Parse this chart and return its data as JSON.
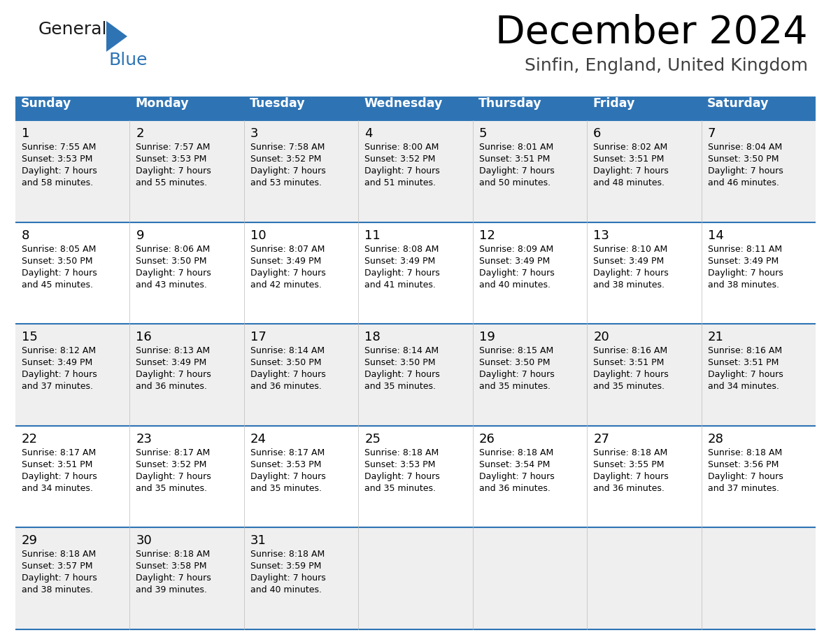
{
  "title": "December 2024",
  "subtitle": "Sinfin, England, United Kingdom",
  "header_color": "#2E74B5",
  "header_text_color": "#FFFFFF",
  "day_headers": [
    "Sunday",
    "Monday",
    "Tuesday",
    "Wednesday",
    "Thursday",
    "Friday",
    "Saturday"
  ],
  "row_bg_even": "#EFEFEF",
  "row_bg_odd": "#FFFFFF",
  "line_color": "#2E74B5",
  "text_color": "#000000",
  "title_color": "#000000",
  "subtitle_color": "#404040",
  "logo_triangle_color": "#2E74B5",
  "logo_general_color": "#1a1a1a",
  "logo_blue_color": "#2E74B5",
  "calendar_data": [
    [
      {
        "day": 1,
        "sunrise": "7:55 AM",
        "sunset": "3:53 PM",
        "daylight_hours": 7,
        "daylight_minutes": 58
      },
      {
        "day": 2,
        "sunrise": "7:57 AM",
        "sunset": "3:53 PM",
        "daylight_hours": 7,
        "daylight_minutes": 55
      },
      {
        "day": 3,
        "sunrise": "7:58 AM",
        "sunset": "3:52 PM",
        "daylight_hours": 7,
        "daylight_minutes": 53
      },
      {
        "day": 4,
        "sunrise": "8:00 AM",
        "sunset": "3:52 PM",
        "daylight_hours": 7,
        "daylight_minutes": 51
      },
      {
        "day": 5,
        "sunrise": "8:01 AM",
        "sunset": "3:51 PM",
        "daylight_hours": 7,
        "daylight_minutes": 50
      },
      {
        "day": 6,
        "sunrise": "8:02 AM",
        "sunset": "3:51 PM",
        "daylight_hours": 7,
        "daylight_minutes": 48
      },
      {
        "day": 7,
        "sunrise": "8:04 AM",
        "sunset": "3:50 PM",
        "daylight_hours": 7,
        "daylight_minutes": 46
      }
    ],
    [
      {
        "day": 8,
        "sunrise": "8:05 AM",
        "sunset": "3:50 PM",
        "daylight_hours": 7,
        "daylight_minutes": 45
      },
      {
        "day": 9,
        "sunrise": "8:06 AM",
        "sunset": "3:50 PM",
        "daylight_hours": 7,
        "daylight_minutes": 43
      },
      {
        "day": 10,
        "sunrise": "8:07 AM",
        "sunset": "3:49 PM",
        "daylight_hours": 7,
        "daylight_minutes": 42
      },
      {
        "day": 11,
        "sunrise": "8:08 AM",
        "sunset": "3:49 PM",
        "daylight_hours": 7,
        "daylight_minutes": 41
      },
      {
        "day": 12,
        "sunrise": "8:09 AM",
        "sunset": "3:49 PM",
        "daylight_hours": 7,
        "daylight_minutes": 40
      },
      {
        "day": 13,
        "sunrise": "8:10 AM",
        "sunset": "3:49 PM",
        "daylight_hours": 7,
        "daylight_minutes": 38
      },
      {
        "day": 14,
        "sunrise": "8:11 AM",
        "sunset": "3:49 PM",
        "daylight_hours": 7,
        "daylight_minutes": 38
      }
    ],
    [
      {
        "day": 15,
        "sunrise": "8:12 AM",
        "sunset": "3:49 PM",
        "daylight_hours": 7,
        "daylight_minutes": 37
      },
      {
        "day": 16,
        "sunrise": "8:13 AM",
        "sunset": "3:49 PM",
        "daylight_hours": 7,
        "daylight_minutes": 36
      },
      {
        "day": 17,
        "sunrise": "8:14 AM",
        "sunset": "3:50 PM",
        "daylight_hours": 7,
        "daylight_minutes": 36
      },
      {
        "day": 18,
        "sunrise": "8:14 AM",
        "sunset": "3:50 PM",
        "daylight_hours": 7,
        "daylight_minutes": 35
      },
      {
        "day": 19,
        "sunrise": "8:15 AM",
        "sunset": "3:50 PM",
        "daylight_hours": 7,
        "daylight_minutes": 35
      },
      {
        "day": 20,
        "sunrise": "8:16 AM",
        "sunset": "3:51 PM",
        "daylight_hours": 7,
        "daylight_minutes": 35
      },
      {
        "day": 21,
        "sunrise": "8:16 AM",
        "sunset": "3:51 PM",
        "daylight_hours": 7,
        "daylight_minutes": 34
      }
    ],
    [
      {
        "day": 22,
        "sunrise": "8:17 AM",
        "sunset": "3:51 PM",
        "daylight_hours": 7,
        "daylight_minutes": 34
      },
      {
        "day": 23,
        "sunrise": "8:17 AM",
        "sunset": "3:52 PM",
        "daylight_hours": 7,
        "daylight_minutes": 35
      },
      {
        "day": 24,
        "sunrise": "8:17 AM",
        "sunset": "3:53 PM",
        "daylight_hours": 7,
        "daylight_minutes": 35
      },
      {
        "day": 25,
        "sunrise": "8:18 AM",
        "sunset": "3:53 PM",
        "daylight_hours": 7,
        "daylight_minutes": 35
      },
      {
        "day": 26,
        "sunrise": "8:18 AM",
        "sunset": "3:54 PM",
        "daylight_hours": 7,
        "daylight_minutes": 36
      },
      {
        "day": 27,
        "sunrise": "8:18 AM",
        "sunset": "3:55 PM",
        "daylight_hours": 7,
        "daylight_minutes": 36
      },
      {
        "day": 28,
        "sunrise": "8:18 AM",
        "sunset": "3:56 PM",
        "daylight_hours": 7,
        "daylight_minutes": 37
      }
    ],
    [
      {
        "day": 29,
        "sunrise": "8:18 AM",
        "sunset": "3:57 PM",
        "daylight_hours": 7,
        "daylight_minutes": 38
      },
      {
        "day": 30,
        "sunrise": "8:18 AM",
        "sunset": "3:58 PM",
        "daylight_hours": 7,
        "daylight_minutes": 39
      },
      {
        "day": 31,
        "sunrise": "8:18 AM",
        "sunset": "3:59 PM",
        "daylight_hours": 7,
        "daylight_minutes": 40
      },
      null,
      null,
      null,
      null
    ]
  ]
}
